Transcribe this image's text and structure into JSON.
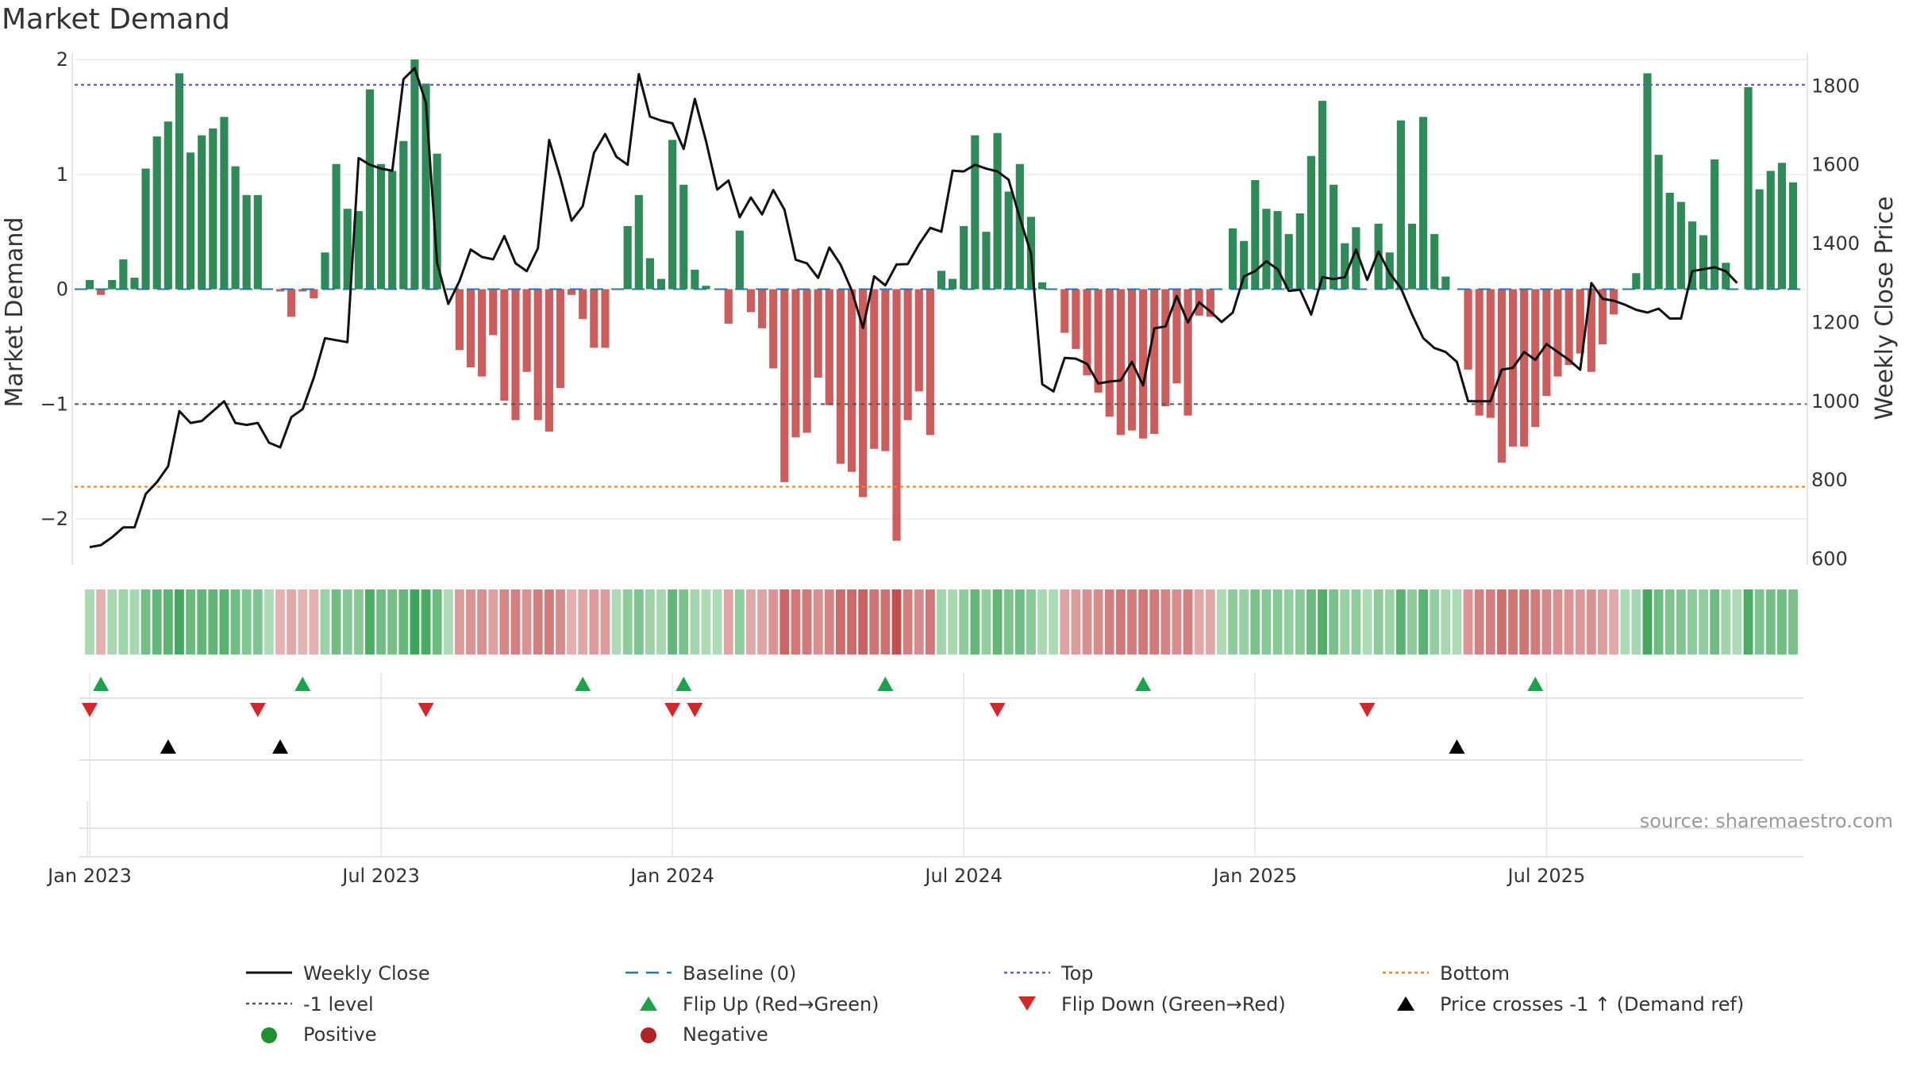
{
  "title": "Market Demand",
  "source": "source: sharemaestro.com",
  "colors": {
    "positive": "#2e8b57",
    "negative": "#cd5c5c",
    "price": "#111111",
    "baseline": "#1f77b4",
    "top": "#6a5acd",
    "bottom": "#ff7f0e",
    "minus1": "#555555",
    "flip_up": "#1aa34a",
    "flip_down": "#d62728",
    "cross": "#000000"
  },
  "chart_data": {
    "type": "bar+line",
    "title": "Market Demand",
    "ylabel_left": "Market Demand",
    "ylabel_right": "Weekly Close Price",
    "ylim_left": [
      -2.4,
      2.0
    ],
    "ylim_right": [
      585,
      1867
    ],
    "yticks_left": [
      2,
      1,
      0,
      -1,
      -2
    ],
    "ytick_labels_left": [
      "2",
      "1",
      "0",
      "−1",
      "−2"
    ],
    "yticks_right": [
      1800,
      1600,
      1400,
      1200,
      1000,
      800,
      600
    ],
    "ytick_labels_right": [
      "1800",
      "1600",
      "1400",
      "1200",
      "1000",
      "800",
      "600"
    ],
    "xticks": [
      0,
      26,
      52,
      78,
      104,
      130
    ],
    "xtick_labels": [
      "Jan 2023",
      "Jul 2023",
      "Jan 2024",
      "Jul 2024",
      "Jan 2025",
      "Jul 2025"
    ],
    "reference_lines": {
      "baseline": 0,
      "top": 1.78,
      "bottom": -1.72,
      "minus_one": -1
    },
    "demand": [
      0.08,
      -0.05,
      0.08,
      0.26,
      0.1,
      1.05,
      1.33,
      1.46,
      1.88,
      1.19,
      1.34,
      1.4,
      1.5,
      1.07,
      0.82,
      0.82,
      0,
      -0.02,
      -0.24,
      -0.02,
      -0.08,
      0.32,
      1.09,
      0.7,
      0.68,
      1.74,
      1.09,
      1.03,
      1.29,
      2,
      1.79,
      1.18,
      0,
      -0.53,
      -0.68,
      -0.76,
      -0.4,
      -0.97,
      -1.14,
      -0.72,
      -1.14,
      -1.24,
      -0.86,
      -0.05,
      -0.26,
      -0.51,
      -0.51,
      0,
      0.55,
      0.82,
      0.27,
      0.09,
      1.3,
      0.91,
      0.17,
      0.03,
      0,
      -0.3,
      0.51,
      -0.2,
      -0.34,
      -0.69,
      -1.68,
      -1.29,
      -1.25,
      -0.77,
      -1.01,
      -1.52,
      -1.59,
      -1.81,
      -1.39,
      -1.41,
      -2.19,
      -1.14,
      -0.89,
      -1.27,
      0.16,
      0.09,
      0.55,
      1.34,
      0.5,
      1.36,
      0.85,
      1.09,
      0.63,
      0.06,
      0,
      -0.38,
      -0.52,
      -0.75,
      -0.9,
      -1.11,
      -1.27,
      -1.23,
      -1.3,
      -1.26,
      -1.02,
      -0.82,
      -1.1,
      -0.23,
      -0.24,
      0,
      0.53,
      0.42,
      0.95,
      0.7,
      0.68,
      0.48,
      0.66,
      1.16,
      1.64,
      0.91,
      0.4,
      0.54,
      0,
      0.57,
      0.32,
      1.47,
      0.57,
      1.5,
      0.48,
      0.11,
      0,
      -0.7,
      -1.1,
      -1.12,
      -1.51,
      -1.37,
      -1.37,
      -1.2,
      -0.93,
      -0.76,
      -0.66,
      -0.56,
      -0.72,
      -0.48,
      -0.22,
      0,
      0.14,
      1.88,
      1.17,
      0.84,
      0.76,
      0.59,
      0.47,
      1.13,
      0.23,
      0,
      1.76,
      0.87,
      1.03,
      1.1,
      0.93
    ],
    "price": [
      630,
      635,
      655,
      680,
      680,
      765,
      795,
      835,
      975,
      945,
      950,
      975,
      1000,
      945,
      940,
      945,
      895,
      883,
      960,
      980,
      1060,
      1160,
      1155,
      1150,
      1617,
      1600,
      1590,
      1585,
      1817,
      1845,
      1757,
      1351,
      1247,
      1305,
      1385,
      1366,
      1360,
      1419,
      1350,
      1330,
      1388,
      1663,
      1567,
      1458,
      1495,
      1630,
      1678,
      1620,
      1600,
      1830,
      1722,
      1712,
      1705,
      1640,
      1767,
      1660,
      1537,
      1560,
      1467,
      1517,
      1474,
      1536,
      1486,
      1359,
      1350,
      1313,
      1390,
      1347,
      1281,
      1186,
      1317,
      1294,
      1347,
      1348,
      1398,
      1440,
      1430,
      1585,
      1583,
      1600,
      1590,
      1583,
      1562,
      1465,
      1375,
      1043,
      1025,
      1110,
      1108,
      1095,
      1045,
      1050,
      1053,
      1100,
      1040,
      1185,
      1190,
      1267,
      1200,
      1251,
      1228,
      1201,
      1225,
      1317,
      1330,
      1355,
      1335,
      1280,
      1283,
      1220,
      1315,
      1310,
      1315,
      1385,
      1308,
      1380,
      1325,
      1287,
      1220,
      1160,
      1135,
      1125,
      1100,
      1000,
      1000,
      1000,
      1080,
      1085,
      1125,
      1105,
      1145,
      1125,
      1105,
      1080,
      1300,
      1260,
      1255,
      1245,
      1232,
      1225,
      1235,
      1210,
      1210,
      1330,
      1335,
      1340,
      1330,
      1300
    ],
    "flip_up": [
      1,
      19,
      44,
      53,
      71,
      94,
      129
    ],
    "flip_down": [
      0,
      15,
      30,
      52,
      54,
      81,
      114
    ],
    "price_cross_up": [
      7,
      17,
      122
    ],
    "legend": [
      "Weekly Close",
      "Baseline (0)",
      "Top",
      "Bottom",
      "-1 level",
      "Flip Up (Red→Green)",
      "Flip Down (Green→Red)",
      "Price crosses -1 ↑ (Demand ref)",
      "Positive",
      "Negative"
    ]
  }
}
